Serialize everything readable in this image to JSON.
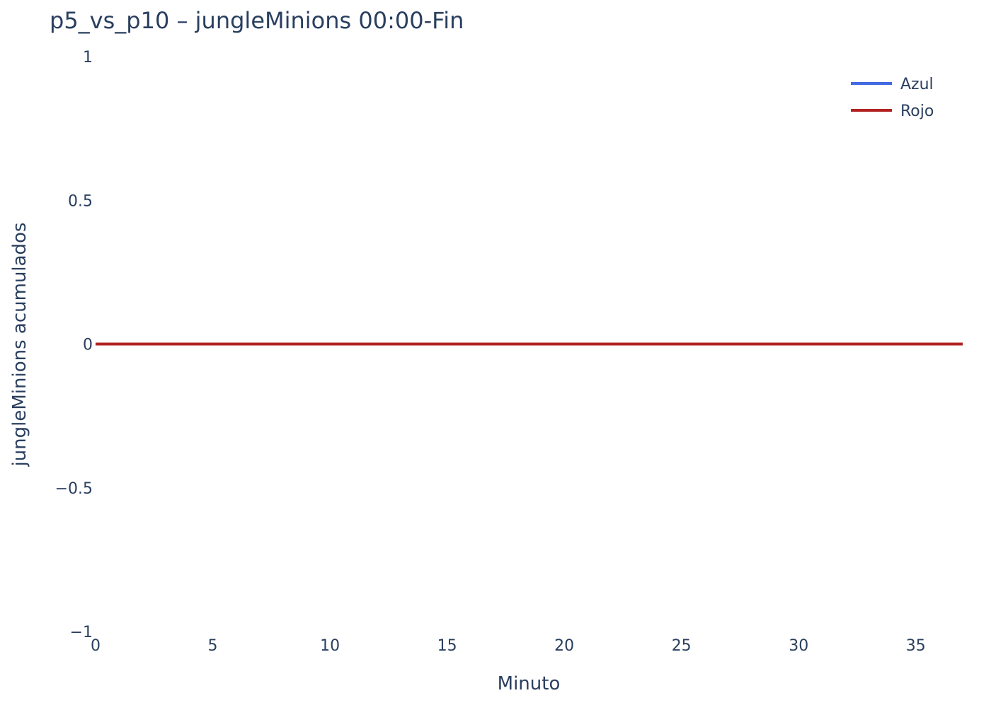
{
  "chart_data": {
    "type": "line",
    "title": "p5_vs_p10 – jungleMinions 00:00-Fin",
    "xlabel": "Minuto",
    "ylabel": "jungleMinions acumulados",
    "xlim": [
      0,
      37
    ],
    "ylim": [
      -1,
      1
    ],
    "xticks": [
      0,
      5,
      10,
      15,
      20,
      25,
      30,
      35
    ],
    "yticks": [
      1,
      0.5,
      0,
      -0.5,
      -1
    ],
    "ytick_labels": [
      "1",
      "0.5",
      "0",
      "−0.5",
      "−1"
    ],
    "grid": false,
    "legend_position": "top-right",
    "series": [
      {
        "name": "Azul",
        "color": "#4169e1",
        "x": [
          0,
          37
        ],
        "y": [
          0,
          0
        ]
      },
      {
        "name": "Rojo",
        "color": "#b22222",
        "x": [
          0,
          37
        ],
        "y": [
          0,
          0
        ]
      }
    ]
  }
}
